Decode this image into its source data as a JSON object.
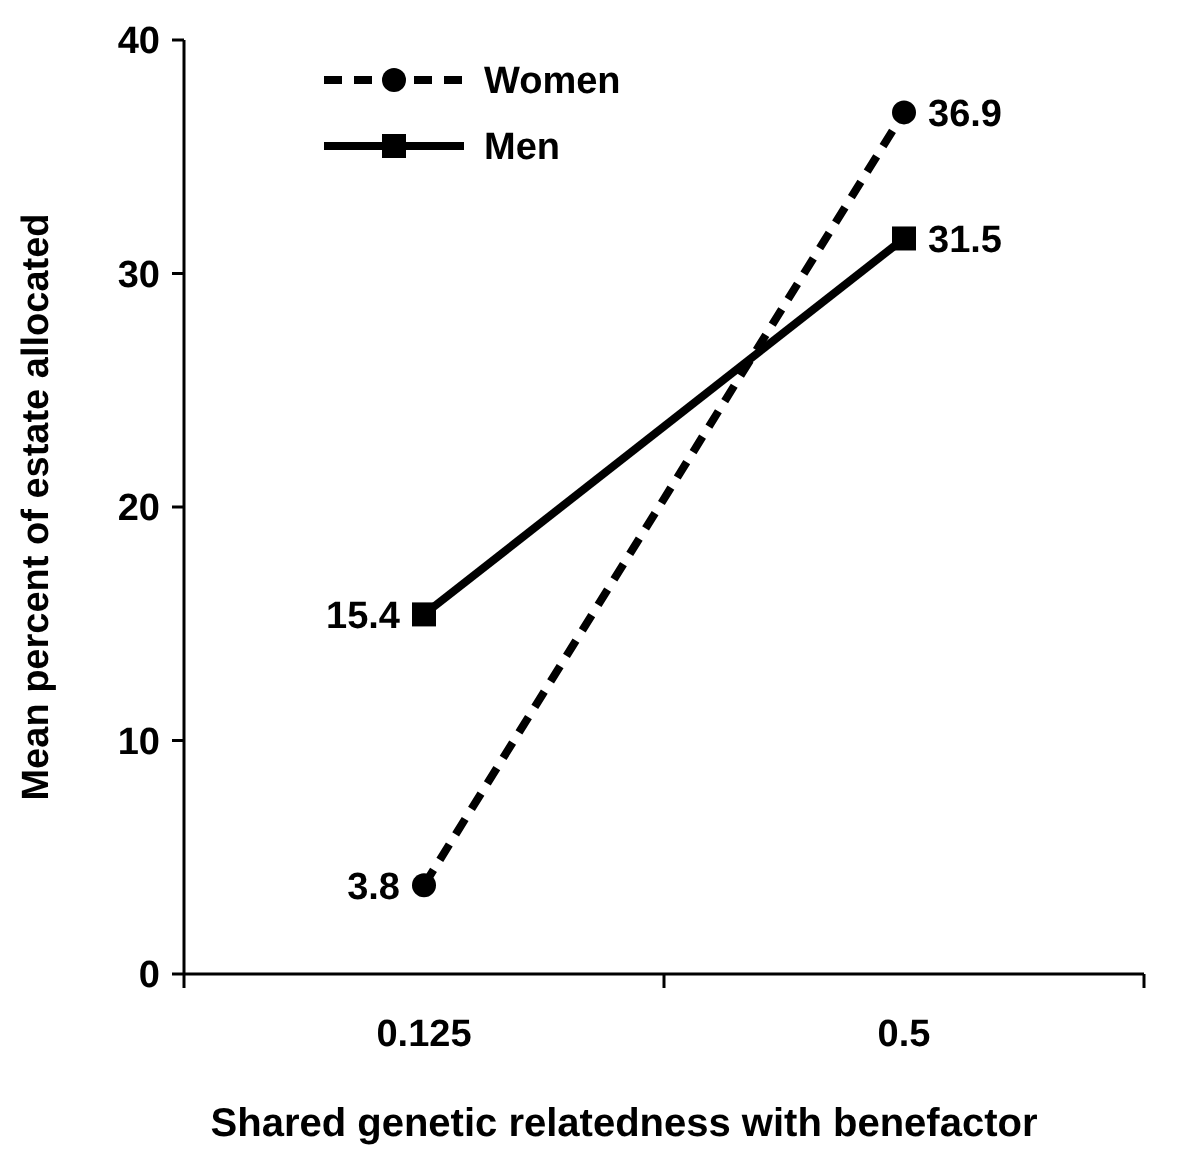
{
  "chart_data": {
    "type": "line",
    "xlabel": "Shared genetic relatedness with benefactor",
    "ylabel": "Mean percent of estate allocated",
    "categories": [
      "0.125",
      "0.5"
    ],
    "ylim": [
      0,
      40
    ],
    "yticks": [
      0,
      10,
      20,
      30,
      40
    ],
    "grid": false,
    "legend": "top left",
    "data_labels": true,
    "series": [
      {
        "name": "Women",
        "color": "#000000",
        "values": [
          3.8,
          36.9
        ],
        "marker": "circle",
        "line_style": "dashed"
      },
      {
        "name": "Men",
        "color": "#000000",
        "values": [
          15.4,
          31.5
        ],
        "marker": "square",
        "line_style": "solid"
      }
    ]
  }
}
